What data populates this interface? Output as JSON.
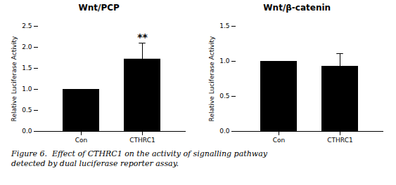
{
  "chart_data": [
    {
      "type": "bar",
      "title": "Wnt/PCP",
      "ylabel": "Relative Luciferase Activity",
      "categories": [
        "Con",
        "CTHRC1"
      ],
      "values": [
        1.0,
        1.72
      ],
      "errors": [
        0.0,
        0.38
      ],
      "color": "#000000",
      "ylim": [
        0,
        2.5
      ],
      "yticks": [
        {
          "value": 0.0,
          "label": "0.0"
        },
        0.5,
        {
          "value": 1.0,
          "label": "1.0"
        },
        1.5,
        {
          "value": 2.0,
          "label": "2.0"
        },
        2.5
      ],
      "grid": false,
      "annotations": [
        {
          "text": "**",
          "category": "CTHRC1"
        }
      ]
    },
    {
      "type": "bar",
      "title": "Wnt/β-catenin",
      "ylabel": "Relative Luciferase Activity",
      "categories": [
        "Con",
        "CTHRC1"
      ],
      "values": [
        1.0,
        0.93
      ],
      "errors": [
        0.0,
        0.18
      ],
      "color": "#000000",
      "ylim": [
        0,
        1.5
      ],
      "yticks": [
        {
          "value": 0.0,
          "label": "0.0"
        },
        0.5,
        {
          "value": 1.0,
          "label": "1.0"
        },
        1.5
      ],
      "grid": false
    }
  ],
  "caption": [
    "Figure 6.  Effect of CTHRC1 on the activity of signalling pathway",
    "detected by dual luciferase reporter assay."
  ]
}
